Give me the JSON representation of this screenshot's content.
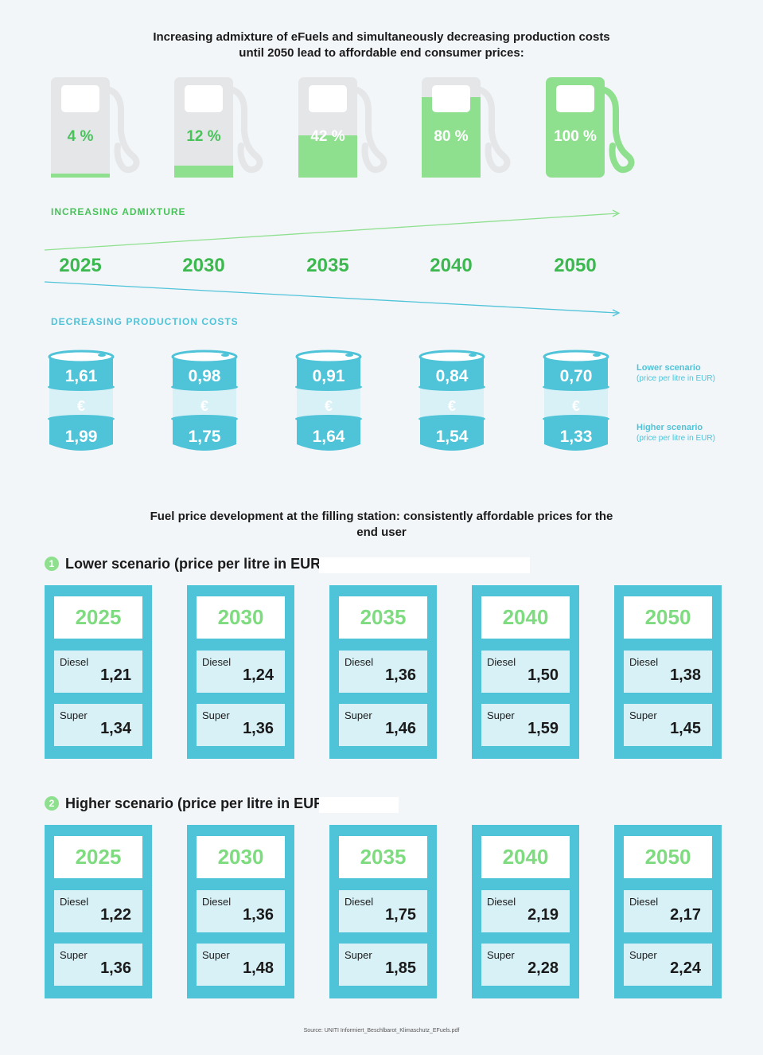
{
  "header_title_line1": "Increasing admixture of eFuels and simultaneously decreasing production costs",
  "header_title_line2": "until 2050 lead to affordable end consumer prices:",
  "admixture_label": "INCREASING ADMIXTURE",
  "production_label": "DECREASING PRODUCTION COSTS",
  "legend": {
    "lower_title": "Lower scenario",
    "lower_sub": "(price per litre in EUR)",
    "higher_title": "Higher scenario",
    "higher_sub": "(price per litre in EUR)"
  },
  "euro_symbol": "€",
  "colors": {
    "green": "#49c25a",
    "light_green": "#8ee08f",
    "blue": "#4fc3d8",
    "light_blue": "#d8f1f7",
    "gray": "#e4e6e8"
  },
  "pumps": [
    {
      "label": "4 %",
      "fill_fraction": 0.04
    },
    {
      "label": "12 %",
      "fill_fraction": 0.12
    },
    {
      "label": "42 %",
      "fill_fraction": 0.42
    },
    {
      "label": "80 %",
      "fill_fraction": 0.8
    },
    {
      "label": "100 %",
      "fill_fraction": 1.0
    }
  ],
  "years": [
    "2025",
    "2030",
    "2035",
    "2040",
    "2050"
  ],
  "barrels": [
    {
      "lower": "1,61",
      "higher": "1,99"
    },
    {
      "lower": "0,98",
      "higher": "1,75"
    },
    {
      "lower": "0,91",
      "higher": "1,64"
    },
    {
      "lower": "0,84",
      "higher": "1,54"
    },
    {
      "lower": "0,70",
      "higher": "1,33"
    }
  ],
  "section2_title_line1": "Fuel price development at the filling station: consistently affordable prices for the",
  "section2_title_line2": "end user",
  "scenarios": [
    {
      "number": "1",
      "title": "Lower scenario (price per litre in EUR)",
      "cards": [
        {
          "year": "2025",
          "diesel": "1,21",
          "super": "1,34"
        },
        {
          "year": "2030",
          "diesel": "1,24",
          "super": "1,36"
        },
        {
          "year": "2035",
          "diesel": "1,36",
          "super": "1,46"
        },
        {
          "year": "2040",
          "diesel": "1,50",
          "super": "1,59"
        },
        {
          "year": "2050",
          "diesel": "1,38",
          "super": "1,45"
        }
      ]
    },
    {
      "number": "2",
      "title": "Higher scenario (price per litre in EUR)",
      "cards": [
        {
          "year": "2025",
          "diesel": "1,22",
          "super": "1,36"
        },
        {
          "year": "2030",
          "diesel": "1,36",
          "super": "1,48"
        },
        {
          "year": "2035",
          "diesel": "1,75",
          "super": "1,85"
        },
        {
          "year": "2040",
          "diesel": "2,19",
          "super": "2,28"
        },
        {
          "year": "2050",
          "diesel": "2,17",
          "super": "2,24"
        }
      ]
    }
  ],
  "diesel_label": "Diesel",
  "super_label": "Super",
  "source": "Source: UNITI Informiert_Beschlbarot_Klimaschutz_EFuels.pdf",
  "chart_data": {
    "type": "table",
    "title": "Increasing admixture of eFuels and simultaneously decreasing production costs until 2050 lead to affordable end consumer prices:",
    "categories": [
      "2025",
      "2030",
      "2035",
      "2040",
      "2050"
    ],
    "series": [
      {
        "name": "Admixture (%)",
        "values": [
          4,
          12,
          42,
          80,
          100
        ]
      },
      {
        "name": "Lower scenario production cost (EUR/l)",
        "values": [
          1.61,
          0.98,
          0.91,
          0.84,
          0.7
        ]
      },
      {
        "name": "Higher scenario production cost (EUR/l)",
        "values": [
          1.99,
          1.75,
          1.64,
          1.54,
          1.33
        ]
      },
      {
        "name": "Lower scenario Diesel (EUR/l)",
        "values": [
          1.21,
          1.24,
          1.36,
          1.5,
          1.38
        ]
      },
      {
        "name": "Lower scenario Super (EUR/l)",
        "values": [
          1.34,
          1.36,
          1.46,
          1.59,
          1.45
        ]
      },
      {
        "name": "Higher scenario Diesel (EUR/l)",
        "values": [
          1.22,
          1.36,
          1.75,
          2.19,
          2.17
        ]
      },
      {
        "name": "Higher scenario Super (EUR/l)",
        "values": [
          1.36,
          1.48,
          1.85,
          2.28,
          2.24
        ]
      }
    ]
  }
}
